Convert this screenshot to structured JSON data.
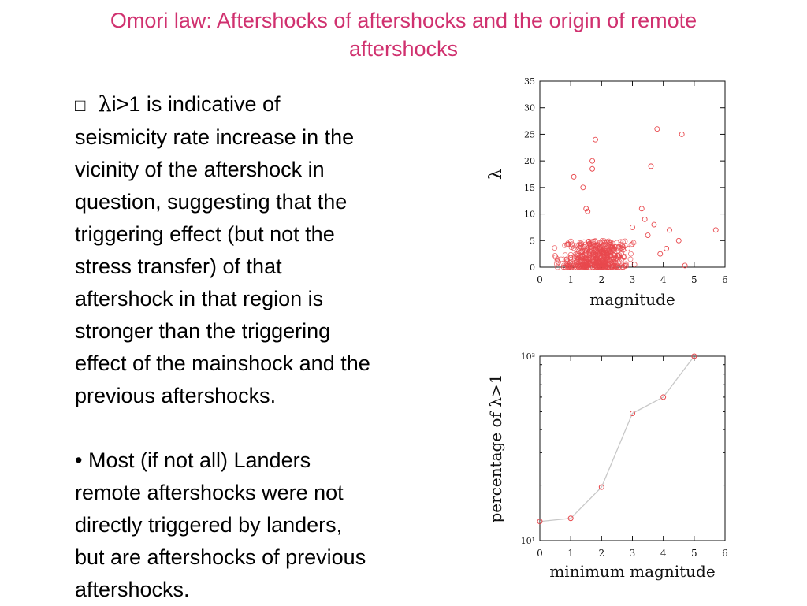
{
  "slide": {
    "title_line1": "Omori law: Aftershocks of aftershocks and the origin of remote",
    "title_line2": "aftershocks",
    "para1": {
      "bullet_glyph": "□",
      "lambda_symbol": "λ",
      "lead": "i>1 is indicative of",
      "lines": [
        "seismicity rate increase in the",
        "vicinity of the aftershock in",
        "question, suggesting that the",
        "triggering effect (but not the",
        "stress transfer) of that",
        "aftershock in that region is",
        "stronger than the triggering",
        "effect of the mainshock and the",
        "previous aftershocks."
      ]
    },
    "para2": {
      "lines": [
        "• Most (if not all) Landers",
        "remote aftershocks were not",
        "directly triggered by landers,",
        "but are aftershocks of previous",
        "aftershocks."
      ]
    }
  },
  "chart_data": [
    {
      "type": "scatter",
      "xlabel": "magnitude",
      "ylabel": "λ",
      "xlim": [
        0,
        6
      ],
      "ylim": [
        0,
        35
      ],
      "xticks": [
        "0",
        "1",
        "2",
        "3",
        "4",
        "5",
        "6"
      ],
      "yticks": [
        "0",
        "5",
        "10",
        "15",
        "20",
        "25",
        "30",
        "35"
      ],
      "marker_color": "#e8484d",
      "dense_cluster": {
        "x_range": [
          0.3,
          3.3
        ],
        "y_range": [
          0,
          5
        ]
      },
      "points": [
        {
          "x": 1.8,
          "y": 24
        },
        {
          "x": 1.7,
          "y": 20
        },
        {
          "x": 1.7,
          "y": 18.5
        },
        {
          "x": 3.8,
          "y": 26
        },
        {
          "x": 4.6,
          "y": 25
        },
        {
          "x": 3.6,
          "y": 19
        },
        {
          "x": 1.4,
          "y": 15
        },
        {
          "x": 1.1,
          "y": 17
        },
        {
          "x": 5.7,
          "y": 7
        },
        {
          "x": 1.5,
          "y": 11
        },
        {
          "x": 1.55,
          "y": 10.5
        },
        {
          "x": 3.3,
          "y": 11
        },
        {
          "x": 3.4,
          "y": 9
        },
        {
          "x": 3.7,
          "y": 8
        },
        {
          "x": 4.2,
          "y": 7
        },
        {
          "x": 4.5,
          "y": 5
        },
        {
          "x": 4.1,
          "y": 3.5
        },
        {
          "x": 3.9,
          "y": 2.5
        },
        {
          "x": 4.7,
          "y": 0.3
        },
        {
          "x": 3.0,
          "y": 7.5
        },
        {
          "x": 3.5,
          "y": 6
        }
      ]
    },
    {
      "type": "line",
      "xlabel": "minimum magnitude",
      "ylabel": "percentage of λ>1",
      "yscale": "log",
      "xlim": [
        0,
        6
      ],
      "ylim": [
        10,
        100
      ],
      "xticks": [
        "0",
        "1",
        "2",
        "3",
        "4",
        "5",
        "6"
      ],
      "yticks": [
        "10¹",
        "10²"
      ],
      "marker_color": "#e8484d",
      "line_color": "#c8c8c8",
      "x": [
        0,
        1,
        2,
        3,
        4,
        5
      ],
      "y": [
        12.7,
        13.2,
        19.5,
        49,
        60,
        100
      ]
    }
  ]
}
